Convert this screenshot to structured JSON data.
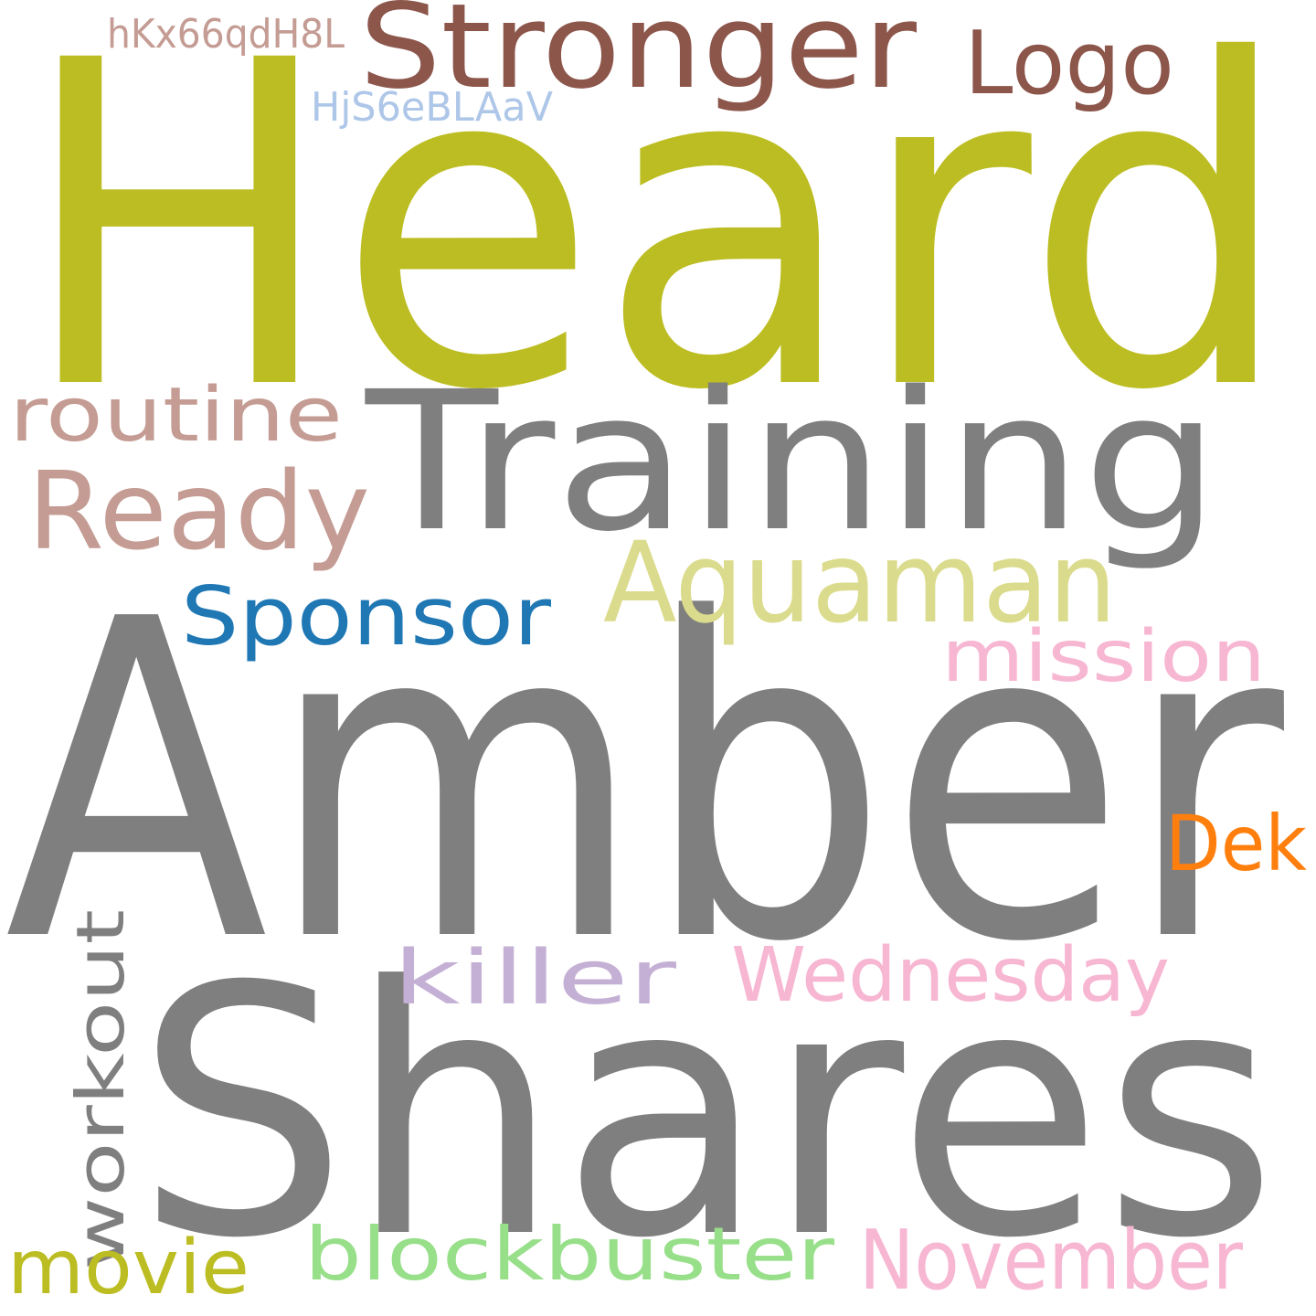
{
  "words": {
    "heard": {
      "text": "Heard",
      "color": "#bcbd22"
    },
    "amber": {
      "text": "Amber",
      "color": "#7f7f7f"
    },
    "shares": {
      "text": "Shares",
      "color": "#7f7f7f"
    },
    "training": {
      "text": "Training",
      "color": "#7f7f7f"
    },
    "stronger": {
      "text": "Stronger",
      "color": "#8c564b"
    },
    "logo": {
      "text": "Logo",
      "color": "#8c564b"
    },
    "hkx": {
      "text": "hKx66qdH8L",
      "color": "#c49c94"
    },
    "hjs": {
      "text": "HjS6eBLAaV",
      "color": "#aec7e8"
    },
    "routine": {
      "text": "routine",
      "color": "#c49c94"
    },
    "ready": {
      "text": "Ready",
      "color": "#c49c94"
    },
    "aquaman": {
      "text": "Aquaman",
      "color": "#dbdb8d"
    },
    "sponsor": {
      "text": "Sponsor",
      "color": "#1f77b4"
    },
    "mission": {
      "text": "mission",
      "color": "#f7b6d2"
    },
    "dek": {
      "text": "Dek",
      "color": "#ff7f0e"
    },
    "killer": {
      "text": "killer",
      "color": "#c5b0d5"
    },
    "wednesday": {
      "text": "Wednesday",
      "color": "#f7b6d2"
    },
    "workout": {
      "text": "workout",
      "color": "#7f7f7f"
    },
    "movie": {
      "text": "movie",
      "color": "#bcbd22"
    },
    "blockbuster": {
      "text": "blockbuster",
      "color": "#98df8a"
    },
    "november": {
      "text": "November",
      "color": "#f7b6d2"
    }
  }
}
